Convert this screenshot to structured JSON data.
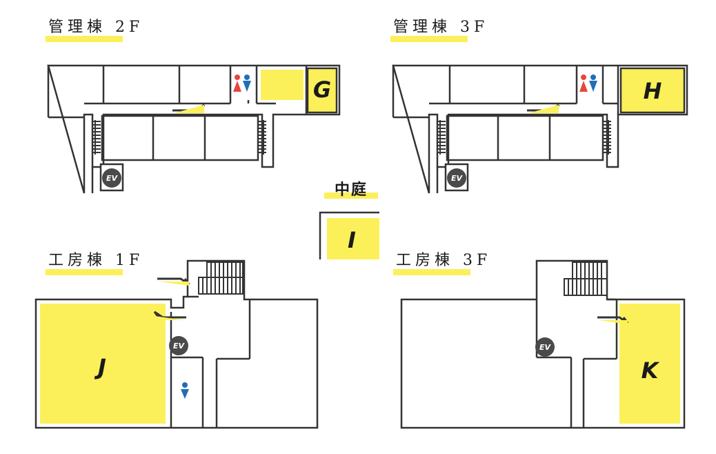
{
  "colors": {
    "highlight": "#fbf05a",
    "wall": "#333333",
    "ev_badge": "#4a4a4a",
    "female": "#e8453c",
    "male": "#1f6fb8"
  },
  "buildings": {
    "admin2f": {
      "title": "管理棟 2F",
      "room": "G",
      "ev": "EV"
    },
    "admin3f": {
      "title": "管理棟 3F",
      "room": "H",
      "ev": "EV"
    },
    "courtyard": {
      "title": "中庭",
      "room": "I"
    },
    "kobo1f": {
      "title": "工房棟 1F",
      "room": "J",
      "ev": "EV"
    },
    "kobo3f": {
      "title": "工房棟 3F",
      "room": "K",
      "ev": "EV"
    }
  },
  "icons": {
    "restroom": "restroom-icon",
    "male": "male-restroom-icon",
    "elevator": "elevator-icon",
    "arrow": "route-arrow-icon"
  }
}
